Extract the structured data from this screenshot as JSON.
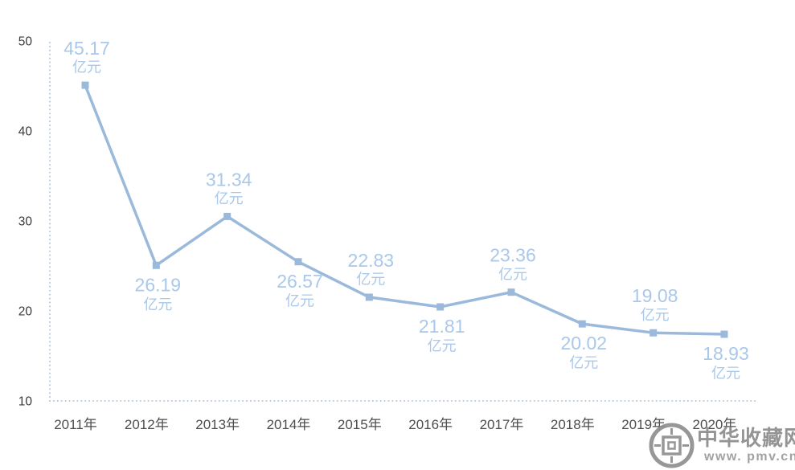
{
  "page": {
    "background": "#ffffff"
  },
  "chart_data": {
    "type": "line",
    "title": "",
    "xlabel": "",
    "ylabel": "",
    "categories": [
      "2011年",
      "2012年",
      "2013年",
      "2014年",
      "2015年",
      "2016年",
      "2017年",
      "2018年",
      "2019年",
      "2020年"
    ],
    "values": [
      45.17,
      26.19,
      31.34,
      26.57,
      22.83,
      21.81,
      23.36,
      20.02,
      19.08,
      18.93
    ],
    "unit_label": "亿元",
    "ylim": [
      10,
      50
    ],
    "yticks": [
      50,
      40,
      30,
      20,
      10
    ],
    "grid": false,
    "legend_position": "none",
    "axis_style": "dotted",
    "marker_shape": "square",
    "data_label_positions": [
      "above",
      "below",
      "above",
      "below",
      "above",
      "below",
      "above",
      "below",
      "above",
      "below"
    ],
    "colors": {
      "line": "#9bb9da",
      "marker": "#9bb9da",
      "data_label": "#a9c8ea",
      "axis_dots": "#b7c9da",
      "x_tick_label": "#4d4d4d",
      "y_tick_label": "#3a3a3a"
    }
  },
  "watermark": {
    "site_name": "中华收藏网",
    "site_url": "www. pmv.cn",
    "color": "#8c8c8c"
  }
}
